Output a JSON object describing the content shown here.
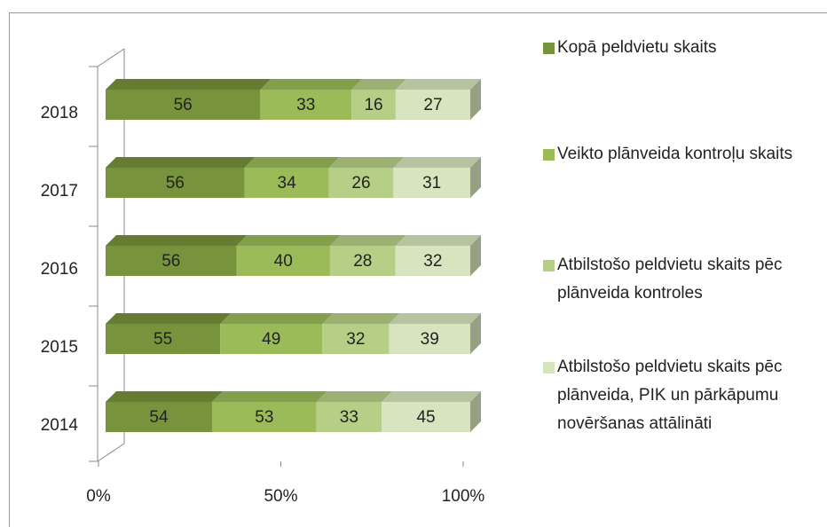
{
  "chart_data": {
    "type": "bar",
    "orientation": "horizontal",
    "stacked": "percent",
    "categories": [
      "2014",
      "2015",
      "2016",
      "2017",
      "2018"
    ],
    "series": [
      {
        "name": "Kopā peldvietu skaits",
        "color": "#77933c",
        "values": [
          54,
          55,
          56,
          56,
          56
        ]
      },
      {
        "name": "Veikto plānveida kontroļu skaits",
        "color": "#9bbb59",
        "values": [
          53,
          49,
          40,
          34,
          33
        ]
      },
      {
        "name": "Atbilstošo peldvietu skaits pēc plānveida kontroles",
        "color": "#b6cf87",
        "values": [
          33,
          32,
          28,
          26,
          16
        ]
      },
      {
        "name": "Atbilstošo peldvietu skaits pēc plānveida, PIK un pārkāpumu novēršanas attālināti",
        "color": "#d7e4bd",
        "values": [
          45,
          39,
          32,
          31,
          27
        ]
      }
    ],
    "xlim": [
      0,
      100
    ],
    "xticks": [
      {
        "value": 0,
        "label": "0%"
      },
      {
        "value": 50,
        "label": "50%"
      },
      {
        "value": 100,
        "label": "100%"
      }
    ],
    "legend": "right"
  }
}
